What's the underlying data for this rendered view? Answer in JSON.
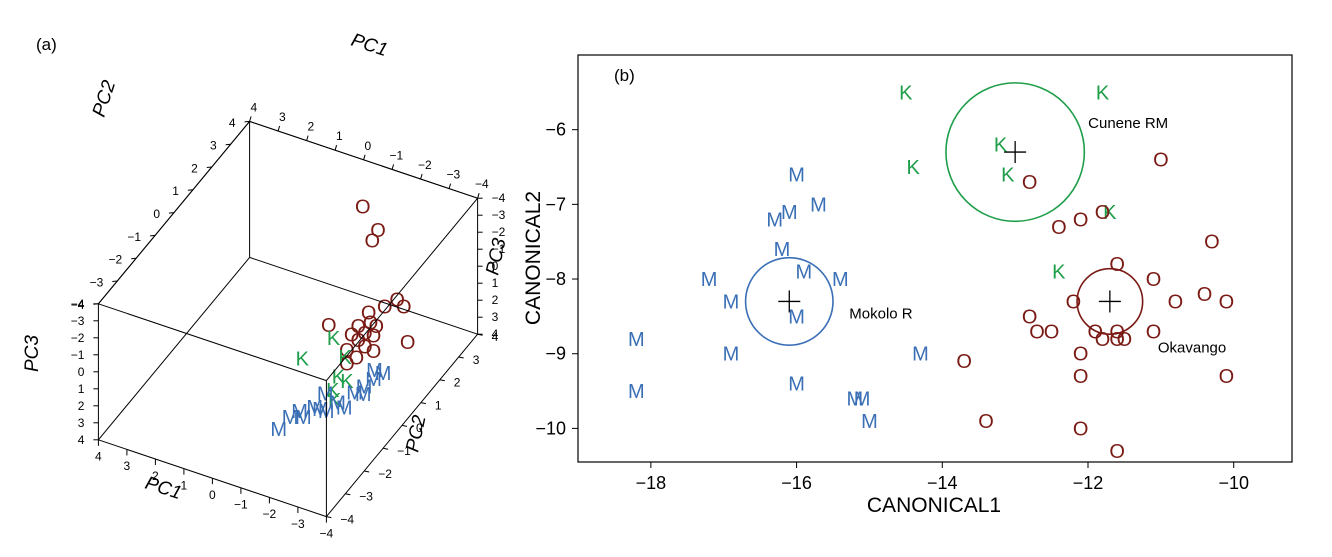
{
  "colors": {
    "M": "#3a6fb5",
    "K": "#1f9e4a",
    "O": "#7a1a14",
    "axis": "#000000"
  },
  "chart_data": [
    {
      "type": "scatter",
      "panel": "(a)",
      "projection": "3d",
      "axes": {
        "PC1": {
          "label": "PC1",
          "ticks": [
            "4",
            "3",
            "2",
            "1",
            "0",
            "−1",
            "−2",
            "−3",
            "−4"
          ]
        },
        "PC2": {
          "label": "PC2",
          "ticks": [
            "4",
            "3",
            "2",
            "1",
            "0",
            "−1",
            "−2",
            "−3",
            "−4"
          ]
        },
        "PC3": {
          "label": "PC3",
          "ticks": [
            "−4",
            "−3",
            "−2",
            "−1",
            "0",
            "1",
            "2",
            "3",
            "4"
          ]
        }
      },
      "points": [
        {
          "g": "O",
          "pc1": -0.5,
          "pc2": 3.2,
          "pc3": -2.6
        },
        {
          "g": "O",
          "pc1": -1.3,
          "pc2": 2.8,
          "pc3": -2.2
        },
        {
          "g": "O",
          "pc1": -1.3,
          "pc2": 2.5,
          "pc3": -2.0
        },
        {
          "g": "O",
          "pc1": -2.6,
          "pc2": 1.2,
          "pc3": -0.6
        },
        {
          "g": "O",
          "pc1": -2.9,
          "pc2": 1.4,
          "pc3": -0.9
        },
        {
          "g": "O",
          "pc1": -3.2,
          "pc2": 1.3,
          "pc3": -0.8
        },
        {
          "g": "O",
          "pc1": -2.3,
          "pc2": 0.8,
          "pc3": -0.6
        },
        {
          "g": "O",
          "pc1": -2.5,
          "pc2": 0.6,
          "pc3": -0.4
        },
        {
          "g": "O",
          "pc1": -2.7,
          "pc2": 0.6,
          "pc3": -0.3
        },
        {
          "g": "O",
          "pc1": -2.2,
          "pc2": 0.4,
          "pc3": -0.3
        },
        {
          "g": "O",
          "pc1": -2.5,
          "pc2": 0.3,
          "pc3": -0.2
        },
        {
          "g": "O",
          "pc1": -2.8,
          "pc2": 0.3,
          "pc3": -0.2
        },
        {
          "g": "O",
          "pc1": -2.1,
          "pc2": 0.2,
          "pc3": 0.0
        },
        {
          "g": "O",
          "pc1": -2.4,
          "pc2": 0.1,
          "pc3": 0.0
        },
        {
          "g": "O",
          "pc1": -2.7,
          "pc2": 0.0,
          "pc3": 0.1
        },
        {
          "g": "O",
          "pc1": -3.0,
          "pc2": 0.0,
          "pc3": 0.2
        },
        {
          "g": "O",
          "pc1": -2.2,
          "pc2": -0.2,
          "pc3": 0.3
        },
        {
          "g": "O",
          "pc1": -2.6,
          "pc2": -0.3,
          "pc3": 0.4
        },
        {
          "g": "O",
          "pc1": -4.0,
          "pc2": 0.3,
          "pc3": -0.5
        },
        {
          "g": "O",
          "pc1": -1.3,
          "pc2": 0.2,
          "pc3": -0.1
        },
        {
          "g": "O",
          "pc1": -2.4,
          "pc2": -0.5,
          "pc3": 0.6
        },
        {
          "g": "K",
          "pc1": -1.6,
          "pc2": 0.0,
          "pc3": 0.2
        },
        {
          "g": "K",
          "pc1": -2.2,
          "pc2": -0.3,
          "pc3": 0.6
        },
        {
          "g": "K",
          "pc1": -2.3,
          "pc2": -0.8,
          "pc3": 1.0
        },
        {
          "g": "K",
          "pc1": -2.6,
          "pc2": -0.8,
          "pc3": 1.1
        },
        {
          "g": "K",
          "pc1": -2.3,
          "pc2": -1.1,
          "pc3": 1.4
        },
        {
          "g": "K",
          "pc1": -2.5,
          "pc2": -1.3,
          "pc3": 1.6
        },
        {
          "g": "K",
          "pc1": -0.9,
          "pc2": -0.6,
          "pc3": 1.0
        },
        {
          "g": "M",
          "pc1": -3.3,
          "pc2": -0.4,
          "pc3": 0.6
        },
        {
          "g": "M",
          "pc1": -3.6,
          "pc2": -0.4,
          "pc3": 0.6
        },
        {
          "g": "M",
          "pc1": -3.4,
          "pc2": -0.6,
          "pc3": 0.8
        },
        {
          "g": "M",
          "pc1": -3.2,
          "pc2": -0.8,
          "pc3": 1.1
        },
        {
          "g": "M",
          "pc1": -3.3,
          "pc2": -1.0,
          "pc3": 1.2
        },
        {
          "g": "M",
          "pc1": -3.0,
          "pc2": -1.0,
          "pc3": 1.3
        },
        {
          "g": "M",
          "pc1": -2.1,
          "pc2": -1.2,
          "pc3": 1.6
        },
        {
          "g": "M",
          "pc1": -2.6,
          "pc2": -1.3,
          "pc3": 1.7
        },
        {
          "g": "M",
          "pc1": -2.9,
          "pc2": -1.4,
          "pc3": 1.7
        },
        {
          "g": "M",
          "pc1": -2.0,
          "pc2": -1.6,
          "pc3": 1.9
        },
        {
          "g": "M",
          "pc1": -2.4,
          "pc2": -1.6,
          "pc3": 1.9
        },
        {
          "g": "M",
          "pc1": -2.2,
          "pc2": -1.6,
          "pc3": 1.9
        },
        {
          "g": "M",
          "pc1": -1.8,
          "pc2": -1.9,
          "pc3": 2.2
        },
        {
          "g": "M",
          "pc1": -1.6,
          "pc2": -1.8,
          "pc3": 2.1
        },
        {
          "g": "M",
          "pc1": -1.4,
          "pc2": -2.0,
          "pc3": 2.3
        },
        {
          "g": "M",
          "pc1": -1.2,
          "pc2": -2.3,
          "pc3": 2.7
        }
      ]
    },
    {
      "type": "scatter",
      "panel": "(b)",
      "xlabel": "CANONICAL1",
      "ylabel": "CANONICAL2",
      "xlim": [
        -19,
        -9.2
      ],
      "ylim": [
        -10.45,
        -5.0
      ],
      "y_inverted": true,
      "xticks": [
        -18,
        -16,
        -14,
        -12,
        -10
      ],
      "yticks": [
        -6,
        -7,
        -8,
        -9,
        -10
      ],
      "grid": false,
      "series": [
        {
          "group": "M",
          "points": [
            [
              -16.3,
              -7.2
            ],
            [
              -16.0,
              -6.6
            ],
            [
              -16.1,
              -7.1
            ],
            [
              -15.7,
              -7.0
            ],
            [
              -16.2,
              -7.6
            ],
            [
              -15.9,
              -7.9
            ],
            [
              -17.2,
              -8.0
            ],
            [
              -16.9,
              -8.3
            ],
            [
              -15.4,
              -8.0
            ],
            [
              -18.2,
              -8.8
            ],
            [
              -16.9,
              -9.0
            ],
            [
              -16.0,
              -8.5
            ],
            [
              -14.3,
              -9.0
            ],
            [
              -16.0,
              -9.4
            ],
            [
              -18.2,
              -9.5
            ],
            [
              -15.2,
              -9.6
            ],
            [
              -15.1,
              -9.6
            ],
            [
              -15.0,
              -9.9
            ]
          ]
        },
        {
          "group": "K",
          "points": [
            [
              -14.5,
              -5.5
            ],
            [
              -11.8,
              -5.5
            ],
            [
              -13.2,
              -6.2
            ],
            [
              -14.4,
              -6.5
            ],
            [
              -13.1,
              -6.6
            ],
            [
              -11.7,
              -7.1
            ],
            [
              -12.4,
              -7.9
            ]
          ]
        },
        {
          "group": "O",
          "points": [
            [
              -12.8,
              -6.7
            ],
            [
              -11.0,
              -6.4
            ],
            [
              -11.8,
              -7.1
            ],
            [
              -12.4,
              -7.3
            ],
            [
              -12.1,
              -7.2
            ],
            [
              -10.3,
              -7.5
            ],
            [
              -11.6,
              -7.8
            ],
            [
              -11.1,
              -8.0
            ],
            [
              -12.2,
              -8.3
            ],
            [
              -10.8,
              -8.3
            ],
            [
              -10.4,
              -8.2
            ],
            [
              -10.1,
              -8.3
            ],
            [
              -12.8,
              -8.5
            ],
            [
              -12.7,
              -8.7
            ],
            [
              -12.5,
              -8.7
            ],
            [
              -11.9,
              -8.7
            ],
            [
              -11.8,
              -8.8
            ],
            [
              -11.6,
              -8.7
            ],
            [
              -11.6,
              -8.8
            ],
            [
              -11.5,
              -8.8
            ],
            [
              -11.1,
              -8.7
            ],
            [
              -12.1,
              -9.0
            ],
            [
              -13.7,
              -9.1
            ],
            [
              -12.1,
              -9.3
            ],
            [
              -10.1,
              -9.3
            ],
            [
              -13.4,
              -9.9
            ],
            [
              -12.1,
              -10.0
            ],
            [
              -11.6,
              -10.3
            ]
          ]
        }
      ],
      "centroids": [
        {
          "name": "Mokolo R",
          "group": "M",
          "x": -16.1,
          "y": -8.3,
          "radius_x": 0.6
        },
        {
          "name": "Cunene RM",
          "group": "K",
          "x": -13.0,
          "y": -6.3,
          "radius_x": 0.95
        },
        {
          "name": "Okavango",
          "group": "O",
          "x": -11.7,
          "y": -8.3,
          "radius_x": 0.45
        }
      ]
    }
  ]
}
